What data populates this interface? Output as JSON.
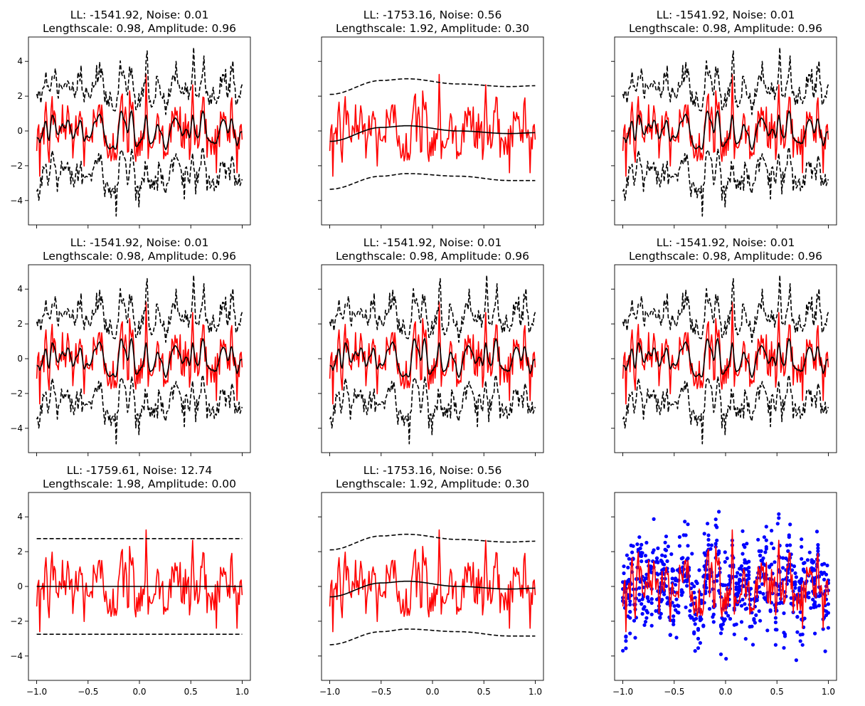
{
  "figure": {
    "rows": 3,
    "cols": 3,
    "sharex": true,
    "sharey": true
  },
  "colors": {
    "data": "#ff0000",
    "mean": "#000000",
    "bounds": "#000000",
    "points": "#0000ff"
  },
  "chart_data": [
    {
      "type": "line",
      "title_line1": "LL: -1541.92, Noise: 0.01",
      "title_line2": "Lengthscale: 0.98, Amplitude: 0.96",
      "model": "fit",
      "ylabels": true,
      "xlabels": false
    },
    {
      "type": "line",
      "title_line1": "LL: -1753.16, Noise: 0.56",
      "title_line2": "Lengthscale: 1.92, Amplitude: 0.30",
      "model": "smooth",
      "ylabels": false,
      "xlabels": false
    },
    {
      "type": "line",
      "title_line1": "LL: -1541.92, Noise: 0.01",
      "title_line2": "Lengthscale: 0.98, Amplitude: 0.96",
      "model": "fit",
      "ylabels": false,
      "xlabels": false
    },
    {
      "type": "line",
      "title_line1": "LL: -1541.92, Noise: 0.01",
      "title_line2": "Lengthscale: 0.98, Amplitude: 0.96",
      "model": "fit",
      "ylabels": true,
      "xlabels": false
    },
    {
      "type": "line",
      "title_line1": "LL: -1541.92, Noise: 0.01",
      "title_line2": "Lengthscale: 0.98, Amplitude: 0.96",
      "model": "fit",
      "ylabels": false,
      "xlabels": false
    },
    {
      "type": "line",
      "title_line1": "LL: -1541.92, Noise: 0.01",
      "title_line2": "Lengthscale: 0.98, Amplitude: 0.96",
      "model": "fit",
      "ylabels": false,
      "xlabels": false
    },
    {
      "type": "line",
      "title_line1": "LL: -1759.61, Noise: 12.74",
      "title_line2": "Lengthscale: 1.98, Amplitude: 0.00",
      "model": "flat",
      "ylabels": true,
      "xlabels": true
    },
    {
      "type": "line",
      "title_line1": "LL: -1753.16, Noise: 0.56",
      "title_line2": "Lengthscale: 1.92, Amplitude: 0.30",
      "model": "smooth",
      "ylabels": false,
      "xlabels": true
    },
    {
      "type": "scatter",
      "title_line1": "",
      "title_line2": "",
      "model": "scatter",
      "ylabels": false,
      "xlabels": true
    }
  ],
  "axes": {
    "xlim": [
      -1.08,
      1.08
    ],
    "ylim": [
      -5.4,
      5.4
    ],
    "xticks": [
      -1.0,
      -0.5,
      0.0,
      0.5,
      1.0
    ],
    "xtick_labels": [
      "−1.0",
      "−0.5",
      "0.0",
      "0.5",
      "1.0"
    ],
    "yticks": [
      -4,
      -2,
      0,
      2,
      4
    ],
    "ytick_labels": [
      "−4",
      "−2",
      "0",
      "2",
      "4"
    ]
  },
  "series_info": {
    "x_range": [
      -1.0,
      1.0
    ],
    "n_points": 200,
    "flat_model": {
      "mean": 0.0,
      "upper": 2.75,
      "lower": -2.75
    },
    "smooth_model": {
      "mean_knots_x": [
        -1.0,
        -0.5,
        -0.25,
        0.25,
        0.75,
        1.0
      ],
      "mean_knots_y": [
        -0.6,
        0.2,
        0.3,
        0.0,
        -0.15,
        -0.1
      ],
      "band_knots_y_upper": [
        2.1,
        2.9,
        3.0,
        2.7,
        2.55,
        2.6
      ],
      "band_knots_y_lower": [
        -3.35,
        -2.6,
        -2.45,
        -2.6,
        -2.85,
        -2.85
      ]
    },
    "scatter_points": 800
  }
}
